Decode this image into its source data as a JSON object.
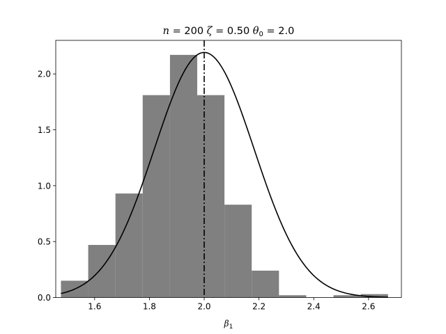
{
  "chart_data": {
    "type": "bar",
    "title": {
      "n_symbol": "n",
      "n_text": " = 200 ",
      "zeta_symbol": "ζ",
      "zeta_text": " = 0.50 ",
      "theta_symbol": "θ",
      "theta_sub": "0",
      "theta_text": " = 2.0"
    },
    "xlabel": {
      "symbol": "β",
      "sub": "1"
    },
    "ylabel": "",
    "xlim": [
      1.458,
      2.72
    ],
    "ylim": [
      0.0,
      2.3
    ],
    "xticks": [
      "1.6",
      "1.8",
      "2.0",
      "2.2",
      "2.4",
      "2.6"
    ],
    "yticks": [
      "0.0",
      "0.5",
      "1.0",
      "1.5",
      "2.0"
    ],
    "histogram": {
      "bin_edges": [
        1.477,
        1.5765,
        1.676,
        1.7755,
        1.875,
        1.9745,
        2.074,
        2.1735,
        2.273,
        2.3725,
        2.472,
        2.5715,
        2.671
      ],
      "density": [
        0.15,
        0.47,
        0.93,
        1.81,
        2.17,
        1.81,
        0.83,
        0.24,
        0.02,
        0.0,
        0.02,
        0.03
      ],
      "color": "#808080"
    },
    "normal_curve": {
      "mean": 2.0,
      "sd": 0.182,
      "x_range": [
        1.477,
        2.671
      ],
      "color": "#000000"
    },
    "reference_line": {
      "x": 2.0,
      "style": "dash-dot",
      "color": "#000000"
    },
    "grid": false,
    "legend": "none"
  }
}
